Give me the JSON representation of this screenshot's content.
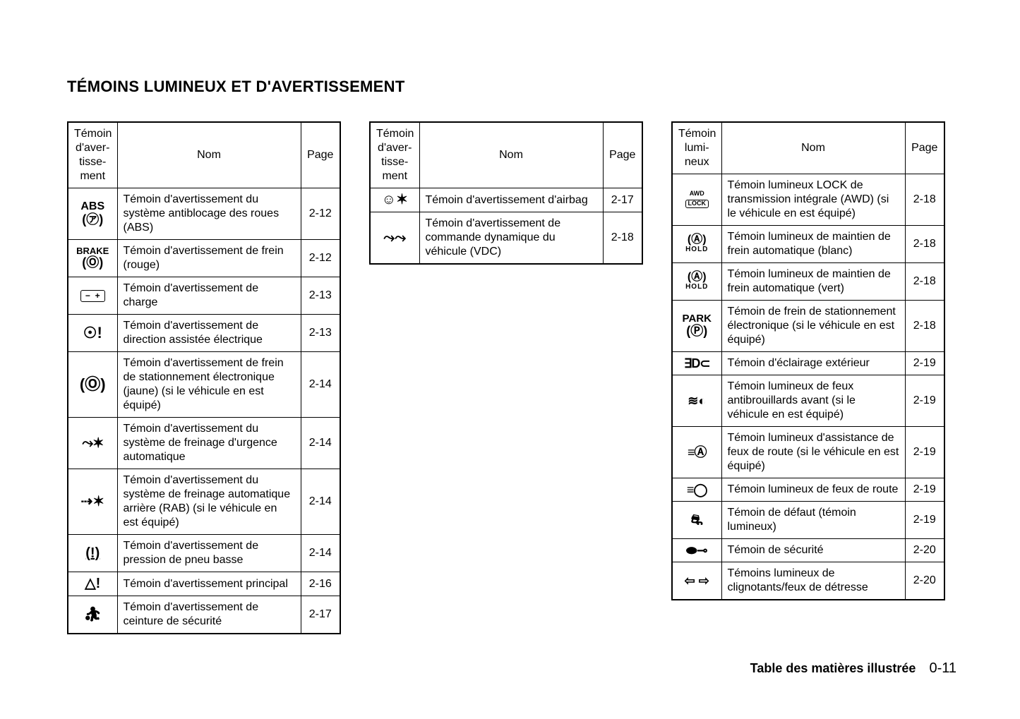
{
  "heading": "TÉMOINS LUMINEUX ET D'AVERTISSEMENT",
  "footer_label": "Table des matières illustrée",
  "footer_page": "0-11",
  "tables": {
    "t1": {
      "head_icon": "Témoin d'aver-tisse-ment",
      "head_name": "Nom",
      "head_page": "Page",
      "rows": [
        {
          "icon": "abs_double",
          "name": "Témoin d'avertissement du système antiblocage des roues (ABS)",
          "page": "2-12"
        },
        {
          "icon": "brake_o",
          "name": "Témoin d'avertissement de frein (rouge)",
          "page": "2-12"
        },
        {
          "icon": "battery",
          "name": "Témoin d'avertissement de charge",
          "page": "2-13"
        },
        {
          "icon": "steering_excl",
          "name": "Témoin d'avertissement de direction assistée électrique",
          "page": "2-13"
        },
        {
          "icon": "park_brake_o",
          "name": "Témoin d'avertissement de frein de stationnement électronique (jaune) (si le véhicule en est équipé)",
          "page": "2-14"
        },
        {
          "icon": "aeb",
          "name": "Témoin d'avertissement du système de freinage d'urgence automatique",
          "page": "2-14"
        },
        {
          "icon": "rab",
          "name": "Témoin d'avertissement du système de freinage automatique arrière (RAB) (si le véhicule en est équipé)",
          "page": "2-14"
        },
        {
          "icon": "tire",
          "name": "Témoin d'avertissement de pression de pneu basse",
          "page": "2-14"
        },
        {
          "icon": "master_tri",
          "name": "Témoin d'avertissement principal",
          "page": "2-16"
        },
        {
          "icon": "seatbelt",
          "name": "Témoin d'avertissement de ceinture de sécurité",
          "page": "2-17"
        }
      ]
    },
    "t2": {
      "head_icon": "Témoin d'aver-tisse-ment",
      "head_name": "Nom",
      "head_page": "Page",
      "rows": [
        {
          "icon": "airbag",
          "name": "Témoin d'avertissement d'airbag",
          "page": "2-17"
        },
        {
          "icon": "vdc",
          "name": "Témoin d'avertissement de commande dynamique du véhicule (VDC)",
          "page": "2-18"
        }
      ]
    },
    "t3": {
      "head_icon": "Témoin lumi-neux",
      "head_name": "Nom",
      "head_page": "Page",
      "rows": [
        {
          "icon": "awd_lock",
          "name": "Témoin lumineux LOCK de transmission intégrale (AWD) (si le véhicule en est équipé)",
          "page": "2-18"
        },
        {
          "icon": "auto_hold",
          "name": "Témoin lumineux de maintien de frein automatique (blanc)",
          "page": "2-18"
        },
        {
          "icon": "auto_hold",
          "name": "Témoin lumineux de maintien de frein automatique (vert)",
          "page": "2-18"
        },
        {
          "icon": "park_p",
          "name": "Témoin de frein de stationnement électronique (si le véhicule en est équipé)",
          "page": "2-18"
        },
        {
          "icon": "ext_light",
          "name": "Témoin d'éclairage extérieur",
          "page": "2-19"
        },
        {
          "icon": "fog",
          "name": "Témoin lumineux de feux antibrouillards avant (si le véhicule en est équipé)",
          "page": "2-19"
        },
        {
          "icon": "hba",
          "name": "Témoin lumineux d'assistance de feux de route (si le véhicule en est équipé)",
          "page": "2-19"
        },
        {
          "icon": "highbeam",
          "name": "Témoin lumineux de feux de route",
          "page": "2-19"
        },
        {
          "icon": "mil",
          "name": "Témoin de défaut (témoin lumineux)",
          "page": "2-19"
        },
        {
          "icon": "security",
          "name": "Témoin de sécurité",
          "page": "2-20"
        },
        {
          "icon": "turn",
          "name": "Témoins lumineux de clignotants/feux de détresse",
          "page": "2-20"
        }
      ]
    }
  },
  "icons": {
    "abs_double": "<span class='icon-stack'><span class='icon-abs'>ABS</span><span class='icon-sub'>(㋐)</span></span>",
    "brake_o": "<span class='icon-stack'><span class='icon-abs' style='font-size:13px'>BRAKE</span><span class='icon-sub'>(Ⓞ)</span></span>",
    "battery": "<span class='icon-box'>− &nbsp;+</span>",
    "steering_excl": "<span style='font-size:22px'>☉!</span>",
    "park_brake_o": "<span style='font-size:22px'>(Ⓞ)</span>",
    "aeb": "<span style='font-size:20px'>⤳✶</span>",
    "rab": "<span style='font-size:20px'>⇢✶</span>",
    "tire": "<span style='font-size:20px;text-decoration:underline'>(!)</span>",
    "master_tri": "<span style='font-size:20px'>△!</span>",
    "seatbelt": "<span style='font-size:20px'>⛹︎</span>",
    "airbag": "<span style='font-size:20px'>☺✶</span>",
    "vdc": "<span style='font-size:20px'>⤳⤳</span>",
    "awd_lock": "<span class='icon-stack'><span class='small-top'>AWD</span><span class='icon-box' style='font-size:9px;padding:0 3px'>LOCK</span></span>",
    "auto_hold": "<span class='icon-stack'><span style='font-size:16px;display:block'>(Ⓐ)</span><span class='tiny' style='display:block;font-weight:bold;letter-spacing:1px'>HOLD</span></span>",
    "park_p": "<span class='icon-stack'><span class='icon-abs' style='font-size:15px'>PARK</span><span class='icon-sub'>(Ⓟ)</span></span>",
    "ext_light": "<span style='font-size:18px;letter-spacing:-1px'>∃D⊂</span>",
    "fog": "<span style='font-size:18px'>≋◐</span>",
    "hba": "<span style='font-size:18px;letter-spacing:-1px'>≡Ⓐ</span>",
    "highbeam": "<span style='font-size:18px;letter-spacing:-1px'>≡◯</span>",
    "mil": "<span style='font-size:20px'>⛐</span>",
    "security": "<span style='font-size:18px'>⬬⊸</span>",
    "turn": "<span style='font-size:18px'>⇦ ⇨</span>"
  }
}
